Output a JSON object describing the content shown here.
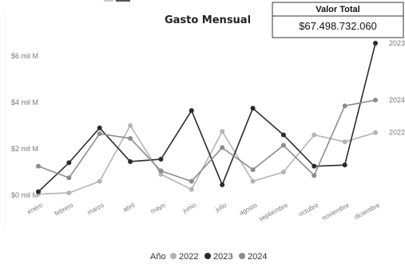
{
  "kpi": {
    "title": "Valor Total",
    "value": "$67.498.732.060"
  },
  "chart_data": {
    "type": "line",
    "title": "Gasto Mensual",
    "xlabel": "",
    "ylabel": "",
    "categories": [
      "enero",
      "febrero",
      "marzo",
      "abril",
      "mayo",
      "junio",
      "julio",
      "agosto",
      "septiembre",
      "octubre",
      "noviembre",
      "diciembre"
    ],
    "y_ticks": [
      {
        "value": 0,
        "label": "$0 mil M"
      },
      {
        "value": 2,
        "label": "$2 mil M"
      },
      {
        "value": 4,
        "label": "$4 mil M"
      },
      {
        "value": 6,
        "label": "$6 mil M"
      }
    ],
    "ylim": [
      0,
      7
    ],
    "grid": false,
    "legend": {
      "title": "Año",
      "position": "bottom"
    },
    "series": [
      {
        "name": "2022",
        "color": "#b4b4b4",
        "end_label": "2022",
        "values": [
          0.05,
          0.1,
          0.6,
          3.0,
          0.9,
          0.25,
          2.75,
          0.6,
          1.0,
          2.6,
          2.3,
          2.7
        ]
      },
      {
        "name": "2023",
        "color": "#2b2b2b",
        "end_label": "2023",
        "values": [
          0.15,
          1.4,
          2.9,
          1.45,
          1.55,
          3.65,
          0.45,
          3.75,
          2.6,
          1.25,
          1.3,
          6.55
        ]
      },
      {
        "name": "2024",
        "color": "#8c8c8c",
        "end_label": "2024",
        "values": [
          1.25,
          0.75,
          2.65,
          2.45,
          1.05,
          0.6,
          2.05,
          1.1,
          2.15,
          0.85,
          3.85,
          4.1
        ]
      }
    ]
  }
}
